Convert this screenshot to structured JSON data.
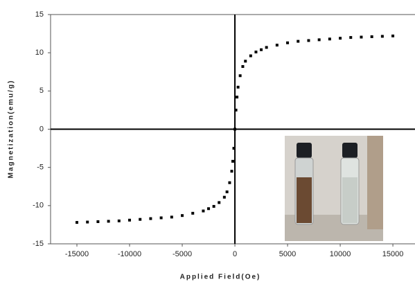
{
  "chart_data": {
    "type": "scatter",
    "x_label": "Applied Field(Oe)",
    "y_label": "Magnetization(emu/g)",
    "x": [
      -15000,
      -14000,
      -13000,
      -12000,
      -11000,
      -10000,
      -9000,
      -8000,
      -7000,
      -6000,
      -5000,
      -4000,
      -3000,
      -2500,
      -2000,
      -1500,
      -1000,
      -750,
      -500,
      -300,
      -200,
      -100,
      0,
      100,
      200,
      300,
      500,
      750,
      1000,
      1500,
      2000,
      2500,
      3000,
      4000,
      5000,
      6000,
      7000,
      8000,
      9000,
      10000,
      11000,
      12000,
      13000,
      14000,
      15000
    ],
    "values": [
      -12.2,
      -12.15,
      -12.1,
      -12.05,
      -12.0,
      -11.9,
      -11.8,
      -11.7,
      -11.6,
      -11.5,
      -11.3,
      -11.0,
      -10.7,
      -10.4,
      -10.1,
      -9.6,
      -8.9,
      -8.2,
      -7.0,
      -5.5,
      -4.2,
      -2.5,
      0,
      2.5,
      4.2,
      5.5,
      7.0,
      8.2,
      8.9,
      9.6,
      10.1,
      10.4,
      10.7,
      11.0,
      11.3,
      11.5,
      11.6,
      11.7,
      11.8,
      11.9,
      12.0,
      12.05,
      12.1,
      12.15,
      12.2
    ],
    "color": "#000000",
    "xlim": [
      -17500,
      17100
    ],
    "xticks": [
      -15000,
      -10000,
      -5000,
      0,
      5000,
      10000,
      15000
    ],
    "ylim": [
      -15,
      15
    ],
    "yticks": [
      -15,
      -10,
      -5,
      0,
      5,
      10,
      15
    ]
  }
}
